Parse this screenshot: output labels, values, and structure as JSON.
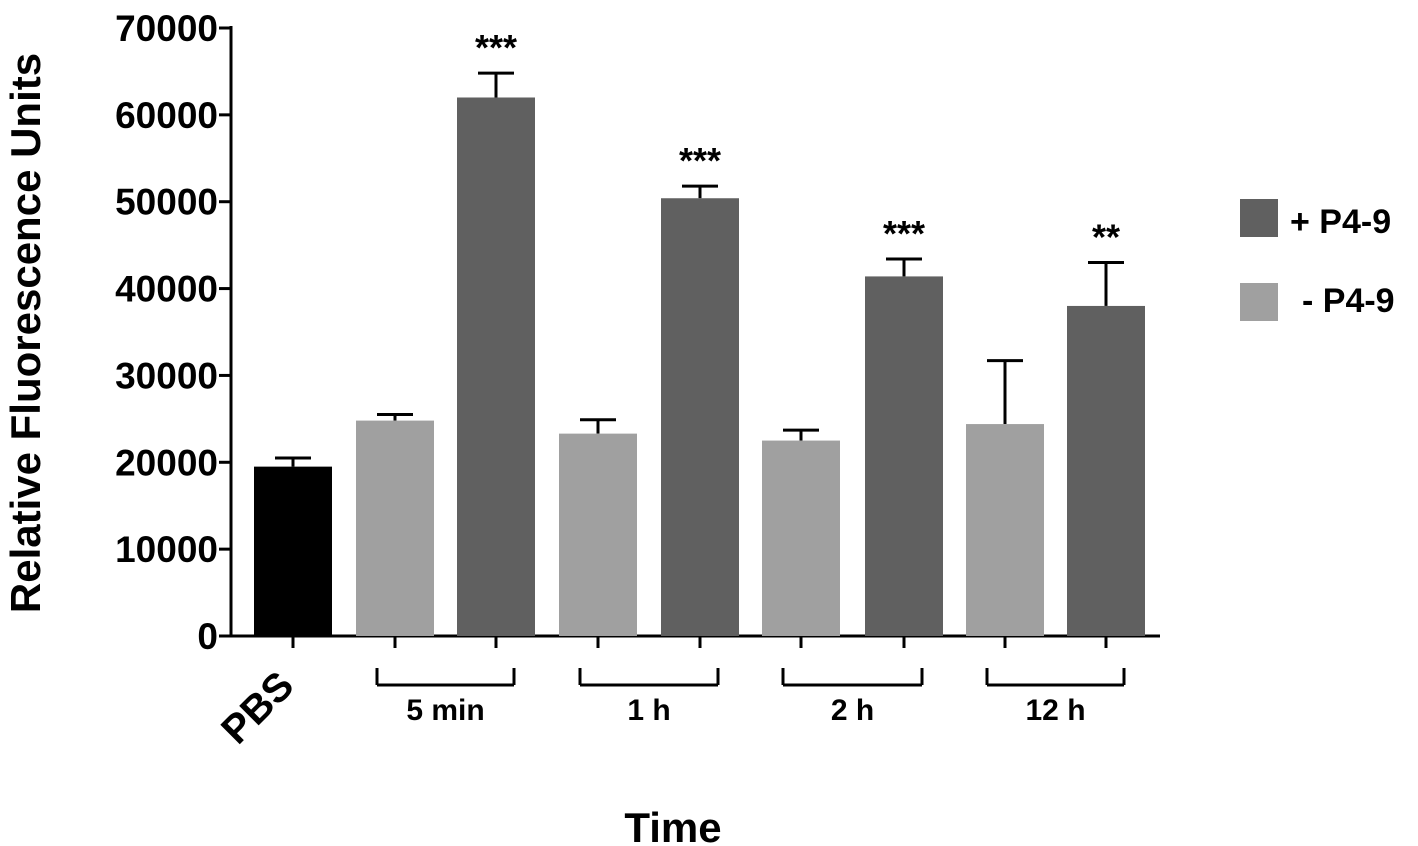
{
  "chart_data": {
    "type": "bar",
    "title": "",
    "xlabel": "Time",
    "ylabel": "Relative Fluorescence Units",
    "ylim": [
      0,
      70000
    ],
    "yticks": [
      0,
      10000,
      20000,
      30000,
      40000,
      50000,
      60000,
      70000
    ],
    "grid": false,
    "legend_position": "right",
    "colors": {
      "pbs": "#000000",
      "minus": "#a0a0a0",
      "plus": "#606060"
    },
    "control": {
      "label": "PBS",
      "value": 19500,
      "error": 1000
    },
    "groups": [
      "5 min",
      "1 h",
      "2 h",
      "12 h"
    ],
    "series": [
      {
        "name": "- P4-9",
        "key": "minus",
        "values": [
          24800,
          23300,
          22500,
          24400
        ],
        "errors": [
          700,
          1600,
          1200,
          7300
        ],
        "significance": [
          "",
          "",
          "",
          ""
        ]
      },
      {
        "name": "+ P4-9",
        "key": "plus",
        "values": [
          62000,
          50400,
          41400,
          38000
        ],
        "errors": [
          2800,
          1400,
          2000,
          5000
        ],
        "significance": [
          "***",
          "***",
          "***",
          "**"
        ]
      }
    ],
    "legend": [
      {
        "label": "+ P4-9",
        "key": "plus"
      },
      {
        "label": "- P4-9",
        "key": "minus"
      }
    ]
  }
}
